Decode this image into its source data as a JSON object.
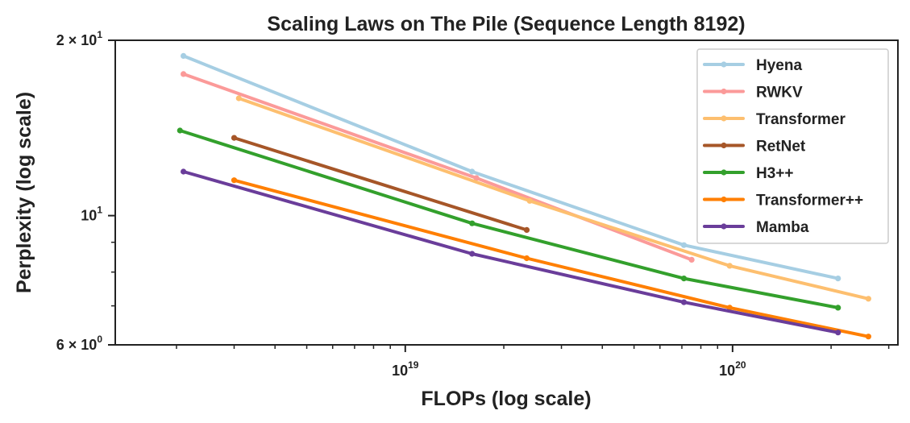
{
  "chart_data": {
    "type": "line",
    "title": "Scaling Laws on The Pile (Sequence Length 8192)",
    "xlabel": "FLOPs (log scale)",
    "ylabel": "Perplexity (log scale)",
    "xscale": "log",
    "yscale": "log",
    "xlim": [
      1.3e+18,
      3.2e+20
    ],
    "ylim": [
      6,
      20
    ],
    "xticks": [
      {
        "value": 1e+19,
        "base": "10",
        "exp": "19"
      },
      {
        "value": 1e+20,
        "base": "10",
        "exp": "20"
      }
    ],
    "yticks": [
      {
        "value": 20,
        "label": "2 × 10",
        "exp": "1"
      },
      {
        "value": 10,
        "label": "10",
        "exp": "1"
      },
      {
        "value": 6,
        "label": "6 × 10",
        "exp": "0"
      }
    ],
    "grid": false,
    "legend_position": "top-right",
    "series": [
      {
        "name": "Hyena",
        "color": "#a6cee3",
        "points": [
          [
            2.1e+18,
            18.8
          ],
          [
            1.6e+19,
            11.9
          ],
          [
            7.1e+19,
            8.9
          ],
          [
            2.1e+20,
            7.8
          ]
        ]
      },
      {
        "name": "RWKV",
        "color": "#fb9a99",
        "points": [
          [
            2.1e+18,
            17.5
          ],
          [
            1.65e+19,
            11.6
          ],
          [
            7.5e+19,
            8.4
          ]
        ]
      },
      {
        "name": "Transformer",
        "color": "#fdbf6f",
        "points": [
          [
            3.1e+18,
            15.9
          ],
          [
            2.4e+19,
            10.6
          ],
          [
            9.8e+19,
            8.2
          ],
          [
            2.6e+20,
            7.2
          ]
        ]
      },
      {
        "name": "RetNet",
        "color": "#a65628",
        "points": [
          [
            3e+18,
            13.6
          ],
          [
            2.35e+19,
            9.45
          ]
        ]
      },
      {
        "name": "H3++",
        "color": "#33a02c",
        "points": [
          [
            2.05e+18,
            14.0
          ],
          [
            1.6e+19,
            9.7
          ],
          [
            7.1e+19,
            7.8
          ],
          [
            2.1e+20,
            6.95
          ]
        ]
      },
      {
        "name": "Transformer++",
        "color": "#ff7f00",
        "points": [
          [
            3e+18,
            11.5
          ],
          [
            2.35e+19,
            8.45
          ],
          [
            9.8e+19,
            6.95
          ],
          [
            2.6e+20,
            6.2
          ]
        ]
      },
      {
        "name": "Mamba",
        "color": "#6a3d9a",
        "points": [
          [
            2.1e+18,
            11.9
          ],
          [
            1.6e+19,
            8.6
          ],
          [
            7.1e+19,
            7.1
          ],
          [
            2.1e+20,
            6.3
          ]
        ]
      }
    ]
  }
}
